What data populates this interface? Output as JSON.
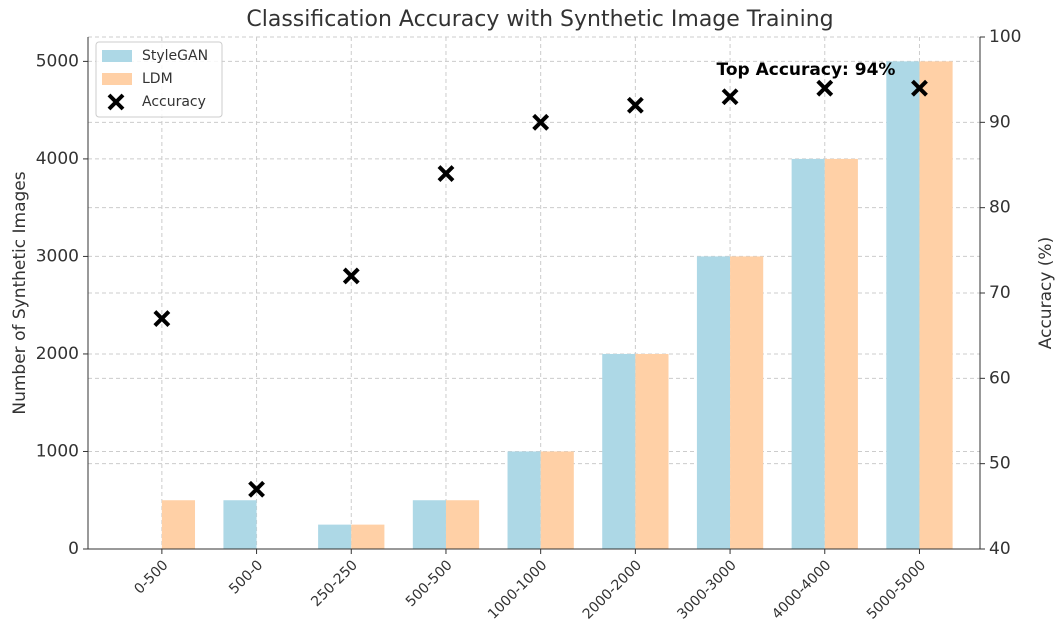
{
  "chart_data": {
    "type": "bar",
    "title": "Classification Accuracy with Synthetic Image Training",
    "ylabel": "Number of Synthetic Images",
    "y2label": "Accuracy (%)",
    "categories": [
      "0-500",
      "500-0",
      "250-250",
      "500-500",
      "1000-1000",
      "2000-2000",
      "3000-3000",
      "4000-4000",
      "5000-5000"
    ],
    "series": [
      {
        "name": "StyleGAN",
        "color": "#add8e6",
        "values": [
          0,
          500,
          250,
          500,
          1000,
          2000,
          3000,
          4000,
          5000
        ]
      },
      {
        "name": "LDM",
        "color": "#ffd0a6",
        "values": [
          500,
          0,
          250,
          500,
          1000,
          2000,
          3000,
          4000,
          5000
        ]
      },
      {
        "name": "Accuracy",
        "type": "scatter",
        "axis": "y2",
        "color": "#000000",
        "values": [
          67,
          47,
          72,
          84,
          90,
          92,
          93,
          94,
          94
        ]
      }
    ],
    "annotation": "Top Accuracy: 94%",
    "ylim": [
      0,
      5250
    ],
    "yticks": [
      0,
      1000,
      2000,
      3000,
      4000,
      5000
    ],
    "y2lim": [
      40,
      100
    ],
    "y2ticks": [
      40,
      50,
      60,
      70,
      80,
      90,
      100
    ],
    "grid": true,
    "legend": "upper left"
  }
}
